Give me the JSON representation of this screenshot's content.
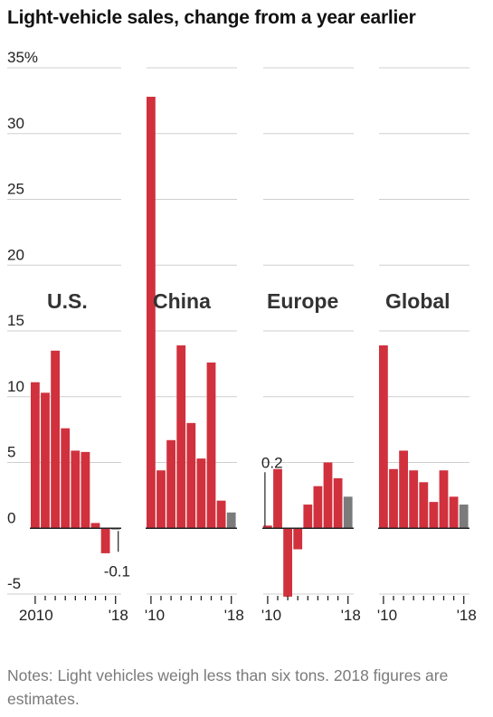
{
  "title": "Light-vehicle sales, change from a year earlier",
  "notes": "Notes: Light vehicles weigh less than six tons. 2018 figures are estimates.",
  "colors": {
    "actual": "#d0313d",
    "estimate": "#7b7b7b",
    "grid": "#cfcfcf",
    "axis": "#222222",
    "text": "#222222"
  },
  "chart_data": {
    "type": "bar",
    "ylim": [
      -5,
      35
    ],
    "y_ticks": [
      35,
      30,
      25,
      20,
      15,
      10,
      5,
      0,
      -5
    ],
    "y_tick_labels": [
      "35%",
      "30",
      "25",
      "20",
      "15",
      "10",
      "5",
      "0",
      "-5"
    ],
    "years": [
      2010,
      2011,
      2012,
      2013,
      2014,
      2015,
      2016,
      2017,
      2018
    ],
    "estimate_year": 2018,
    "panels": [
      {
        "name": "U.S.",
        "values": [
          11.1,
          10.3,
          13.5,
          7.6,
          5.9,
          5.8,
          0.4,
          -1.9,
          -0.1
        ],
        "x_labels": [
          "2010",
          "'18"
        ],
        "annotation": {
          "year": 2018,
          "text": "-0.1"
        }
      },
      {
        "name": "China",
        "values": [
          32.8,
          4.4,
          6.7,
          13.9,
          8.0,
          5.3,
          12.6,
          2.1,
          1.2
        ],
        "x_labels": [
          "'10",
          "'18"
        ]
      },
      {
        "name": "Europe",
        "values": [
          0.2,
          4.5,
          -5.2,
          -1.6,
          1.8,
          3.2,
          5.0,
          3.8,
          2.4
        ],
        "x_labels": [
          "'10",
          "'18"
        ],
        "annotation": {
          "year": 2010,
          "text": "0.2"
        }
      },
      {
        "name": "Global",
        "values": [
          13.9,
          4.5,
          5.9,
          4.4,
          3.5,
          2.0,
          4.4,
          2.4,
          1.8
        ],
        "x_labels": [
          "'10",
          "'18"
        ]
      }
    ]
  }
}
